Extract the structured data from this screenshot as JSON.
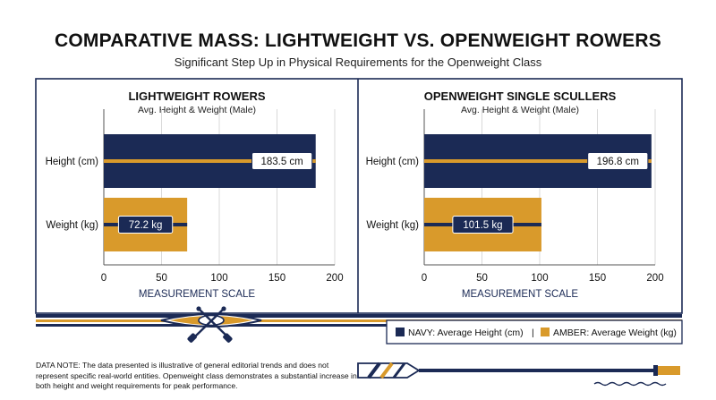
{
  "title": "COMPARATIVE MASS: LIGHTWEIGHT VS. OPENWEIGHT ROWERS",
  "subtitle": "Significant Step Up in Physical Requirements for the Openweight Class",
  "colors": {
    "navy": "#1b2a55",
    "amber": "#d99a2b",
    "grid": "#d9d9d9"
  },
  "chart_data": [
    {
      "type": "bar",
      "title": "LIGHTWEIGHT ROWERS",
      "subtitle": "Avg. Height & Weight (Male)",
      "categories": [
        "Height (cm)",
        "Weight (kg)"
      ],
      "values": [
        183.5,
        72.2
      ],
      "value_labels": [
        "183.5 cm",
        "72.2 kg"
      ],
      "xlabel": "MEASUREMENT SCALE",
      "xlim": [
        0,
        200
      ],
      "xticks": [
        "0",
        "50",
        "100",
        "150",
        "200"
      ],
      "grid": true
    },
    {
      "type": "bar",
      "title": "OPENWEIGHT SINGLE SCULLERS",
      "subtitle": "Avg. Height & Weight (Male)",
      "categories": [
        "Height (cm)",
        "Weight (kg)"
      ],
      "values": [
        196.8,
        101.5
      ],
      "value_labels": [
        "196.8 cm",
        "101.5 kg"
      ],
      "xlabel": "MEASUREMENT SCALE",
      "xlim": [
        0,
        200
      ],
      "xticks": [
        "0",
        "50",
        "100",
        "150",
        "200"
      ],
      "grid": true
    }
  ],
  "legend": {
    "navy_label": "NAVY: Average Height (cm)",
    "separator": "|",
    "amber_label": "AMBER: Average Weight (kg)"
  },
  "note": "DATA NOTE: The data presented is illustrative of general editorial trends and does not represent specific real-world entities. Openweight class demonstrates a substantial increase in both height and weight requirements for peak performance.",
  "decor": {
    "boat_icon": "rowing-shell-icon",
    "oar_icon": "oar-icon"
  }
}
